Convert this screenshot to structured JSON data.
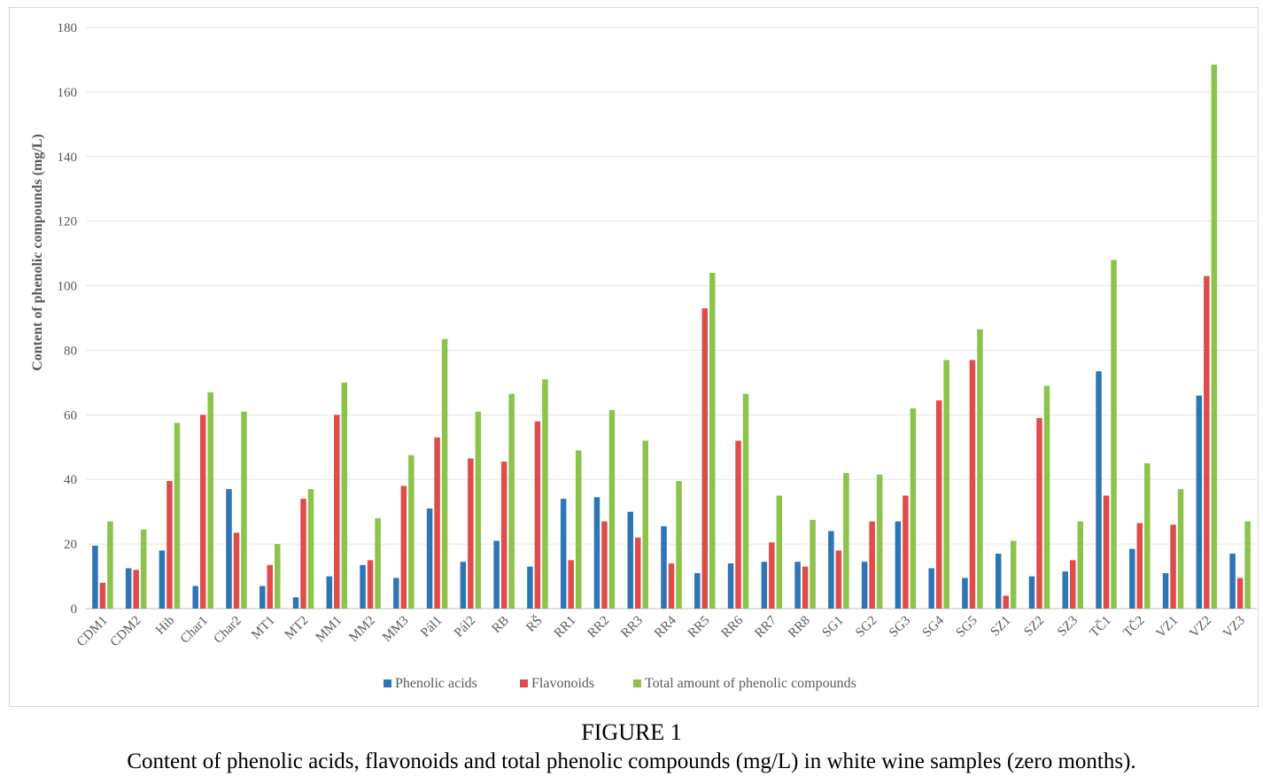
{
  "figure": {
    "number": "FIGURE 1",
    "caption": "Content of phenolic acids, flavonoids and total phenolic compounds (mg/L) in white wine samples (zero months)."
  },
  "chart_data": {
    "type": "bar",
    "title": "",
    "xlabel": "",
    "ylabel": "Content of phenolic compounds (mg/L)",
    "ylim": [
      0,
      180
    ],
    "yticks": [
      0,
      20,
      40,
      60,
      80,
      100,
      120,
      140,
      160,
      180
    ],
    "grid": true,
    "legend_position": "bottom",
    "categories": [
      "CDM1",
      "CDM2",
      "Hib",
      "Char1",
      "Char2",
      "MT1",
      "MT2",
      "MM1",
      "MM2",
      "MM3",
      "Pál1",
      "Pál2",
      "RB",
      "RŠ",
      "RR1",
      "RR2",
      "RR3",
      "RR4",
      "RR5",
      "RR6",
      "RR7",
      "RR8",
      "SG1",
      "SG2",
      "SG3",
      "SG4",
      "SG5",
      "SZ1",
      "SZ2",
      "SZ3",
      "TČ1",
      "TČ2",
      "VZ1",
      "VZ2",
      "VZ3"
    ],
    "series": [
      {
        "name": "Phenolic acids",
        "color": "#2e75b6",
        "values": [
          19.5,
          12.5,
          18,
          7,
          37,
          7,
          3.5,
          10,
          13.5,
          9.5,
          31,
          14.5,
          21,
          13,
          34,
          34.5,
          30,
          25.5,
          11,
          14,
          14.5,
          14.5,
          24,
          14.5,
          27,
          12.5,
          9.5,
          17,
          10,
          11.5,
          73.5,
          18.5,
          11,
          66,
          17
        ]
      },
      {
        "name": "Flavonoids",
        "color": "#e04b4b",
        "values": [
          8,
          12,
          39.5,
          60,
          23.5,
          13.5,
          34,
          60,
          15,
          38,
          53,
          46.5,
          45.5,
          58,
          15,
          27,
          22,
          14,
          93,
          52,
          20.5,
          13,
          18,
          27,
          35,
          64.5,
          77,
          4,
          59,
          15,
          35,
          26.5,
          26,
          103,
          9.5
        ]
      },
      {
        "name": "Total amount of phenolic compounds",
        "color": "#8cc34a",
        "values": [
          27,
          24.5,
          57.5,
          67,
          61,
          20,
          37,
          70,
          28,
          47.5,
          83.5,
          61,
          66.5,
          71,
          49,
          61.5,
          52,
          39.5,
          104,
          66.5,
          35,
          27.5,
          42,
          41.5,
          62,
          77,
          86.5,
          21,
          69,
          27,
          108,
          45,
          37,
          168.5,
          27
        ]
      }
    ]
  }
}
